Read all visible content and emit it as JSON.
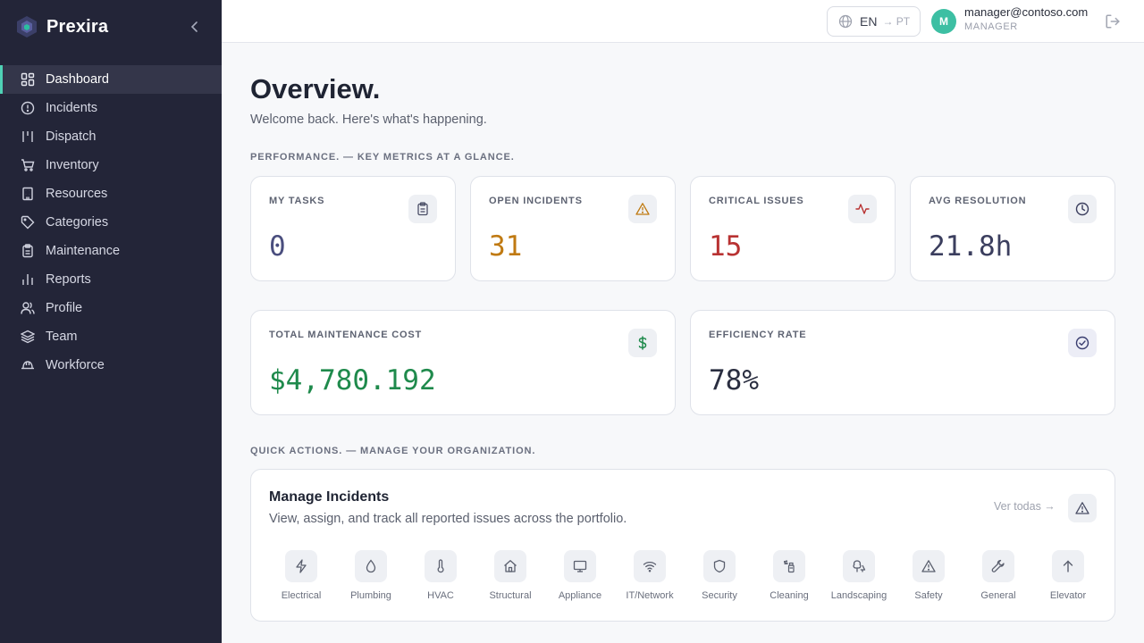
{
  "brand": {
    "name": "Prexira"
  },
  "sidebar": {
    "items": [
      {
        "label": "Dashboard",
        "icon": "grid-icon",
        "active": true
      },
      {
        "label": "Incidents",
        "icon": "alert-circle-icon"
      },
      {
        "label": "Dispatch",
        "icon": "dispatch-icon"
      },
      {
        "label": "Inventory",
        "icon": "cart-icon"
      },
      {
        "label": "Resources",
        "icon": "building-icon"
      },
      {
        "label": "Categories",
        "icon": "tag-icon"
      },
      {
        "label": "Maintenance",
        "icon": "clipboard-icon"
      },
      {
        "label": "Reports",
        "icon": "bar-chart-icon"
      },
      {
        "label": "Profile",
        "icon": "users-icon"
      },
      {
        "label": "Team",
        "icon": "layers-icon"
      },
      {
        "label": "Workforce",
        "icon": "hard-hat-icon"
      }
    ]
  },
  "header": {
    "lang_current": "EN",
    "lang_arrow": "→ PT",
    "avatar_initial": "M",
    "user_email": "manager@contoso.com",
    "user_role": "MANAGER"
  },
  "main": {
    "title": "Overview.",
    "subtitle": "Welcome back. Here's what's happening.",
    "performance_label": "PERFORMANCE. — KEY METRICS AT A GLANCE.",
    "quick_actions_label": "QUICK ACTIONS. — MANAGE YOUR ORGANIZATION."
  },
  "metrics": [
    {
      "label": "MY TASKS",
      "value": "0",
      "color": "#4a4e7e",
      "icon": "clipboard-icon"
    },
    {
      "label": "OPEN INCIDENTS",
      "value": "31",
      "color": "#c07a12",
      "icon": "warning-icon"
    },
    {
      "label": "CRITICAL ISSUES",
      "value": "15",
      "color": "#b83232",
      "icon": "activity-icon"
    },
    {
      "label": "AVG RESOLUTION",
      "value": "21.8h",
      "color": "#3b3e5e",
      "icon": "clock-icon"
    },
    {
      "label": "TOTAL MAINTENANCE COST",
      "value": "$4,780.192",
      "color": "#1f8a4c",
      "icon": "dollar-icon"
    },
    {
      "label": "EFFICIENCY RATE",
      "value": "78%",
      "color": "#2a2e40",
      "icon": "check-circle-icon"
    }
  ],
  "quick_action": {
    "title": "Manage Incidents",
    "description": "View, assign, and track all reported issues across the portfolio.",
    "link": "Ver todas →",
    "categories": [
      "Electrical",
      "Plumbing",
      "HVAC",
      "Structural",
      "Appliance",
      "IT/Network",
      "Security",
      "Cleaning",
      "Landscaping",
      "Safety",
      "General",
      "Elevator"
    ]
  }
}
